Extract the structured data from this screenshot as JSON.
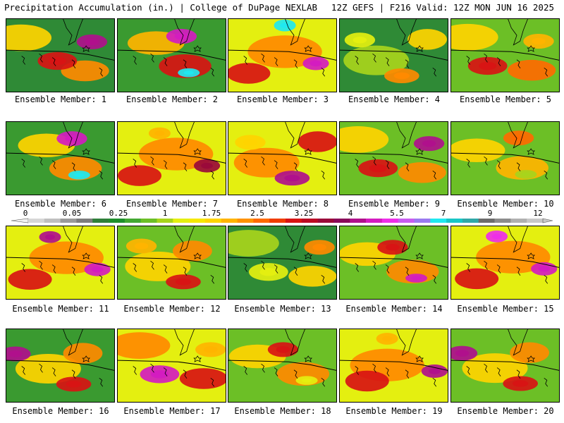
{
  "header": {
    "left": "Precipitation Accumulation (in.) | College of DuPage NEXLAB",
    "right": "12Z GEFS | F216 Valid: 12Z MON JUN 16 2025"
  },
  "colors": {
    "scale": [
      "#d6d6d6",
      "#bfbfbf",
      "#9a9a9a",
      "#7d7d7d",
      "#2f7f3a",
      "#1f8f2c",
      "#43a832",
      "#6cbf26",
      "#a8d41c",
      "#e4ef10",
      "#f6e800",
      "#ffd400",
      "#ffb400",
      "#ff9200",
      "#ff6a00",
      "#f03c00",
      "#d81414",
      "#bc0a24",
      "#9a0a3a",
      "#8a0a5a",
      "#b0108c",
      "#d41cc0",
      "#ee2ee8",
      "#c85cf0",
      "#9a7af0",
      "#20e8f0",
      "#18c6c6",
      "#30a8a8",
      "#6c6c6c",
      "#8c8c8c",
      "#b0b0b0",
      "#c8c8c8"
    ]
  },
  "colorbar": {
    "ticks": [
      "0",
      "0.05",
      "0.25",
      "1",
      "1.75",
      "2.5",
      "3.25",
      "4",
      "5.5",
      "7",
      "9",
      "12"
    ]
  },
  "map": {
    "members": [
      {
        "caption": "Ensemble Member: 1",
        "base": "#2f8a36",
        "blobs": [
          {
            "c": "#ffd400"
          },
          {
            "c": "#ff8a00"
          },
          {
            "c": "#d81414"
          },
          {
            "c": "#b0108c"
          }
        ]
      },
      {
        "caption": "Ensemble Member: 2",
        "base": "#3a9a30",
        "blobs": [
          {
            "c": "#ffb400"
          },
          {
            "c": "#d81414"
          },
          {
            "c": "#d41cc0"
          },
          {
            "c": "#20e8f0"
          }
        ]
      },
      {
        "caption": "Ensemble Member: 3",
        "base": "#e4ef10",
        "blobs": [
          {
            "c": "#ff8a00"
          },
          {
            "c": "#d81414"
          },
          {
            "c": "#d41cc0"
          },
          {
            "c": "#20e8f0"
          }
        ]
      },
      {
        "caption": "Ensemble Member: 4",
        "base": "#2f8a36",
        "blobs": [
          {
            "c": "#a8d41c"
          },
          {
            "c": "#ffd400"
          },
          {
            "c": "#ff8a00"
          },
          {
            "c": "#e4ef10"
          }
        ]
      },
      {
        "caption": "Ensemble Member: 5",
        "base": "#6cbf26",
        "blobs": [
          {
            "c": "#ffd400"
          },
          {
            "c": "#ff6a00"
          },
          {
            "c": "#d81414"
          },
          {
            "c": "#ffb400"
          }
        ]
      },
      {
        "caption": "Ensemble Member: 6",
        "base": "#3a9a30",
        "blobs": [
          {
            "c": "#ffd400"
          },
          {
            "c": "#ff8a00"
          },
          {
            "c": "#d41cc0"
          },
          {
            "c": "#20e8f0"
          }
        ]
      },
      {
        "caption": "Ensemble Member: 7",
        "base": "#e4ef10",
        "blobs": [
          {
            "c": "#ff8a00"
          },
          {
            "c": "#d81414"
          },
          {
            "c": "#9a0a3a"
          },
          {
            "c": "#ffb400"
          }
        ]
      },
      {
        "caption": "Ensemble Member: 8",
        "base": "#e4ef10",
        "blobs": [
          {
            "c": "#ff8a00"
          },
          {
            "c": "#d81414"
          },
          {
            "c": "#b0108c"
          },
          {
            "c": "#ffd400"
          }
        ]
      },
      {
        "caption": "Ensemble Member: 9",
        "base": "#6cbf26",
        "blobs": [
          {
            "c": "#ffd400"
          },
          {
            "c": "#ff8a00"
          },
          {
            "c": "#d81414"
          },
          {
            "c": "#b0108c"
          }
        ]
      },
      {
        "caption": "Ensemble Member: 10",
        "base": "#6cbf26",
        "blobs": [
          {
            "c": "#ffd400"
          },
          {
            "c": "#ffb400"
          },
          {
            "c": "#ff6a00"
          },
          {
            "c": "#a8d41c"
          }
        ]
      },
      {
        "caption": "Ensemble Member: 11",
        "base": "#e4ef10",
        "blobs": [
          {
            "c": "#ff8a00"
          },
          {
            "c": "#d81414"
          },
          {
            "c": "#d41cc0"
          },
          {
            "c": "#b0108c"
          }
        ]
      },
      {
        "caption": "Ensemble Member: 12",
        "base": "#6cbf26",
        "blobs": [
          {
            "c": "#ffd400"
          },
          {
            "c": "#ff8a00"
          },
          {
            "c": "#d81414"
          },
          {
            "c": "#ffb400"
          }
        ]
      },
      {
        "caption": "Ensemble Member: 13",
        "base": "#2f8a36",
        "blobs": [
          {
            "c": "#a8d41c"
          },
          {
            "c": "#ffd400"
          },
          {
            "c": "#e4ef10"
          },
          {
            "c": "#ff8a00"
          }
        ]
      },
      {
        "caption": "Ensemble Member: 14",
        "base": "#6cbf26",
        "blobs": [
          {
            "c": "#ffd400"
          },
          {
            "c": "#ff8a00"
          },
          {
            "c": "#d81414"
          },
          {
            "c": "#d41cc0"
          }
        ]
      },
      {
        "caption": "Ensemble Member: 15",
        "base": "#e4ef10",
        "blobs": [
          {
            "c": "#ff8a00"
          },
          {
            "c": "#d81414"
          },
          {
            "c": "#d41cc0"
          },
          {
            "c": "#ee2ee8"
          }
        ]
      },
      {
        "caption": "Ensemble Member: 16",
        "base": "#3a9a30",
        "blobs": [
          {
            "c": "#ffd400"
          },
          {
            "c": "#ff8a00"
          },
          {
            "c": "#d81414"
          },
          {
            "c": "#b0108c"
          }
        ]
      },
      {
        "caption": "Ensemble Member: 17",
        "base": "#e4ef10",
        "blobs": [
          {
            "c": "#ff8a00"
          },
          {
            "c": "#d81414"
          },
          {
            "c": "#d41cc0"
          },
          {
            "c": "#ffb400"
          }
        ]
      },
      {
        "caption": "Ensemble Member: 18",
        "base": "#6cbf26",
        "blobs": [
          {
            "c": "#ffd400"
          },
          {
            "c": "#ff8a00"
          },
          {
            "c": "#d81414"
          },
          {
            "c": "#e4ef10"
          }
        ]
      },
      {
        "caption": "Ensemble Member: 19",
        "base": "#e4ef10",
        "blobs": [
          {
            "c": "#ff8a00"
          },
          {
            "c": "#d81414"
          },
          {
            "c": "#b0108c"
          },
          {
            "c": "#ffb400"
          }
        ]
      },
      {
        "caption": "Ensemble Member: 20",
        "base": "#6cbf26",
        "blobs": [
          {
            "c": "#ffd400"
          },
          {
            "c": "#ff8a00"
          },
          {
            "c": "#d81414"
          },
          {
            "c": "#b0108c"
          }
        ]
      }
    ]
  }
}
